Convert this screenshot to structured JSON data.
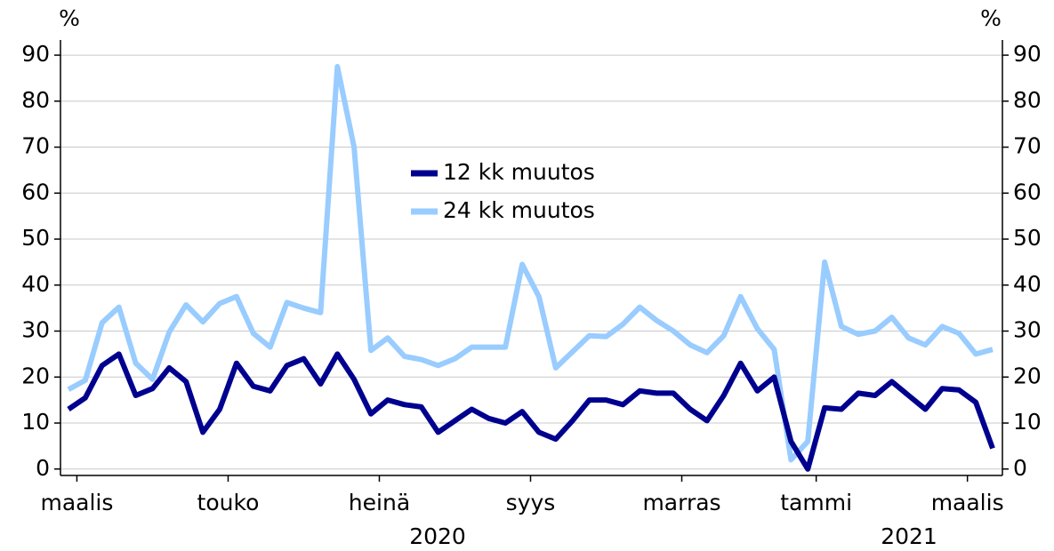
{
  "chart_data": {
    "type": "line",
    "y_unit": "%",
    "y2_unit": "%",
    "categories": [
      "maalis",
      null,
      null,
      null,
      null,
      null,
      null,
      null,
      null,
      "touko",
      null,
      null,
      null,
      null,
      null,
      null,
      null,
      null,
      "heinä",
      null,
      null,
      null,
      null,
      null,
      null,
      null,
      null,
      "syys",
      null,
      null,
      null,
      null,
      null,
      null,
      null,
      null,
      "marras",
      null,
      null,
      null,
      null,
      null,
      null,
      null,
      "tammi",
      null,
      null,
      null,
      null,
      null,
      null,
      null,
      null,
      "maalis",
      null,
      null
    ],
    "year_labels": [
      "2020",
      "2021"
    ],
    "series": [
      {
        "name": "12 kk muutos",
        "color": "#00008f",
        "values": [
          13,
          15.5,
          22.5,
          25,
          16,
          17.5,
          22,
          19,
          8,
          13,
          23,
          18,
          17,
          22.5,
          24,
          18.5,
          25,
          19.5,
          12,
          15,
          14,
          13.5,
          8,
          10.5,
          13,
          11,
          10,
          12.5,
          8,
          6.5,
          10.5,
          15,
          15,
          14,
          17,
          16.5,
          16.5,
          13,
          10.5,
          16,
          23,
          17,
          20,
          6,
          0,
          13.3,
          13,
          16.5,
          16,
          19,
          16,
          13,
          17.5,
          17.2,
          14.5,
          4.5
        ]
      },
      {
        "name": "24 kk muutos",
        "color": "#99ccff",
        "values": [
          17.3,
          19.3,
          31.8,
          35.2,
          23,
          19.5,
          29.8,
          35.7,
          32,
          36,
          37.5,
          29.5,
          26.5,
          36.2,
          35,
          34,
          87.5,
          70,
          25.8,
          28.5,
          24.5,
          23.8,
          22.5,
          24,
          26.5,
          26.5,
          26.5,
          44.5,
          37.5,
          22,
          25.5,
          29,
          28.8,
          31.5,
          35.2,
          32.3,
          30,
          27,
          25.3,
          29,
          37.5,
          30.5,
          26,
          2,
          6,
          45,
          31,
          29.3,
          30,
          33,
          28.5,
          27,
          31,
          29.5,
          25,
          26
        ]
      }
    ],
    "ylim": [
      -1.4,
      93.3
    ],
    "yticks": [
      0,
      10,
      20,
      30,
      40,
      50,
      60,
      70,
      80,
      90
    ],
    "y2lim": [
      -1.4,
      93.3
    ],
    "y2ticks": [
      0,
      10,
      20,
      30,
      40,
      50,
      60,
      70,
      80,
      90
    ],
    "grid": true,
    "legend": "center"
  }
}
